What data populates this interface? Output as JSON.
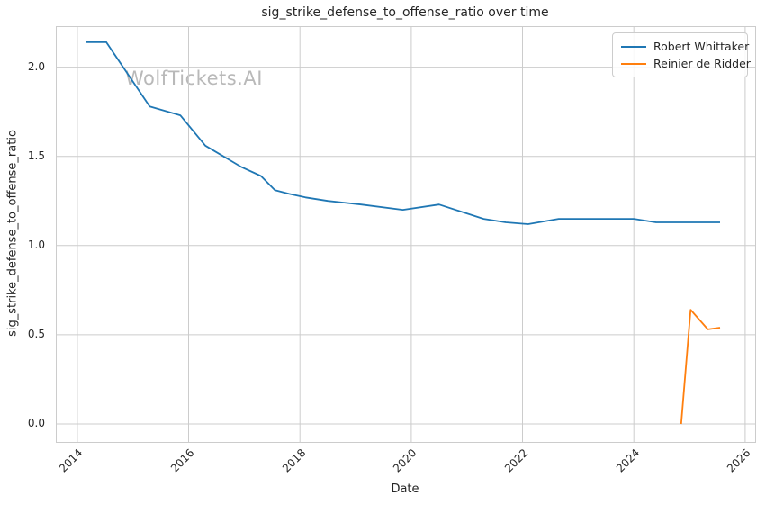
{
  "chart_data": {
    "type": "line",
    "title": "sig_strike_defense_to_offense_ratio over time",
    "xlabel": "Date",
    "ylabel": "sig_strike_defense_to_offense_ratio",
    "watermark": "WolfTickets.AI",
    "xlim": [
      2013.63,
      2026.18
    ],
    "ylim": [
      -0.101,
      2.225
    ],
    "x_ticks": [
      2014,
      2016,
      2018,
      2020,
      2022,
      2024,
      2026
    ],
    "x_tick_labels": [
      "2014",
      "2016",
      "2018",
      "2020",
      "2022",
      "2024",
      "2026"
    ],
    "y_ticks": [
      0.0,
      0.5,
      1.0,
      1.5,
      2.0
    ],
    "y_tick_labels": [
      "0.0",
      "0.5",
      "1.0",
      "1.5",
      "2.0"
    ],
    "grid": true,
    "grid_color": "#cccccc",
    "legend_position": "upper right",
    "series": [
      {
        "name": "Robert Whittaker",
        "color": "#1f77b4",
        "x": [
          2014.16,
          2014.52,
          2015.3,
          2015.85,
          2016.3,
          2016.95,
          2017.3,
          2017.55,
          2017.8,
          2018.1,
          2018.5,
          2019.1,
          2019.85,
          2020.5,
          2021.3,
          2021.7,
          2022.1,
          2022.65,
          2024.0,
          2024.4,
          2025.55
        ],
        "y": [
          2.14,
          2.14,
          1.78,
          1.73,
          1.56,
          1.44,
          1.39,
          1.31,
          1.29,
          1.27,
          1.25,
          1.23,
          1.2,
          1.23,
          1.15,
          1.13,
          1.12,
          1.15,
          1.15,
          1.13,
          1.13
        ]
      },
      {
        "name": "Reinier de Ridder",
        "color": "#ff7f0e",
        "x": [
          2024.85,
          2025.02,
          2025.33,
          2025.55
        ],
        "y": [
          0.0,
          0.64,
          0.53,
          0.54
        ]
      }
    ]
  }
}
